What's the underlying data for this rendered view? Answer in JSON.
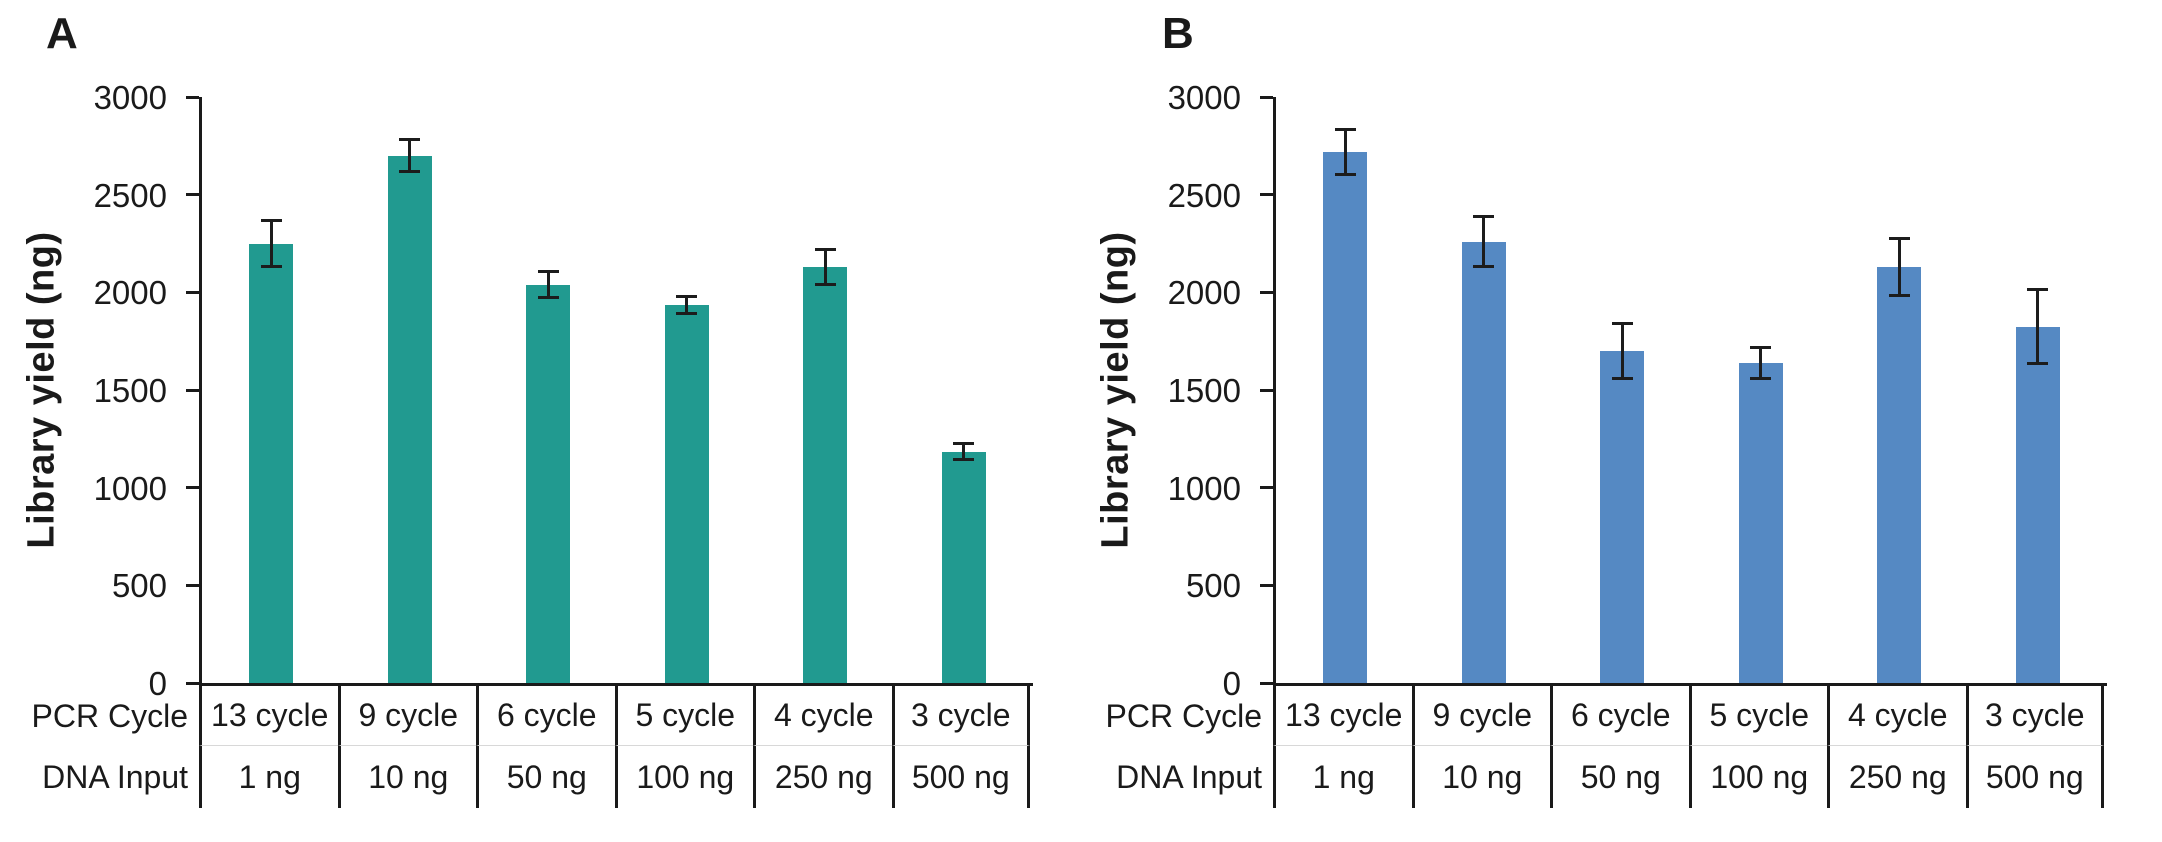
{
  "chart_data": [
    {
      "type": "bar",
      "panel_label": "A",
      "ylabel": "Library yield (ng)",
      "ylim": [
        0,
        3000
      ],
      "yticks": [
        0,
        500,
        1000,
        1500,
        2000,
        2500,
        3000
      ],
      "grid": false,
      "legend": null,
      "bar_color": "#219a90",
      "x_table": {
        "row_labels": [
          "PCR Cycle",
          "DNA Input"
        ],
        "rows": [
          [
            "13 cycle",
            "9 cycle",
            "6 cycle",
            "5 cycle",
            "4 cycle",
            "3 cycle"
          ],
          [
            "1 ng",
            "10 ng",
            "50 ng",
            "100 ng",
            "250 ng",
            "500 ng"
          ]
        ]
      },
      "values": [
        2250,
        2700,
        2040,
        1935,
        2130,
        1185
      ],
      "error_bars": [
        120,
        80,
        65,
        45,
        90,
        40
      ]
    },
    {
      "type": "bar",
      "panel_label": "B",
      "ylabel": "Library yield (ng)",
      "ylim": [
        0,
        3000
      ],
      "yticks": [
        0,
        500,
        1000,
        1500,
        2000,
        2500,
        3000
      ],
      "grid": false,
      "legend": null,
      "bar_color": "#5589c3",
      "x_table": {
        "row_labels": [
          "PCR Cycle",
          "DNA Input"
        ],
        "rows": [
          [
            "13 cycle",
            "9 cycle",
            "6 cycle",
            "5 cycle",
            "4 cycle",
            "3 cycle"
          ],
          [
            "1 ng",
            "10 ng",
            "50 ng",
            "100 ng",
            "250 ng",
            "500 ng"
          ]
        ]
      },
      "values": [
        2720,
        2260,
        1700,
        1640,
        2130,
        1825
      ],
      "error_bars": [
        115,
        130,
        140,
        80,
        145,
        190
      ]
    }
  ]
}
